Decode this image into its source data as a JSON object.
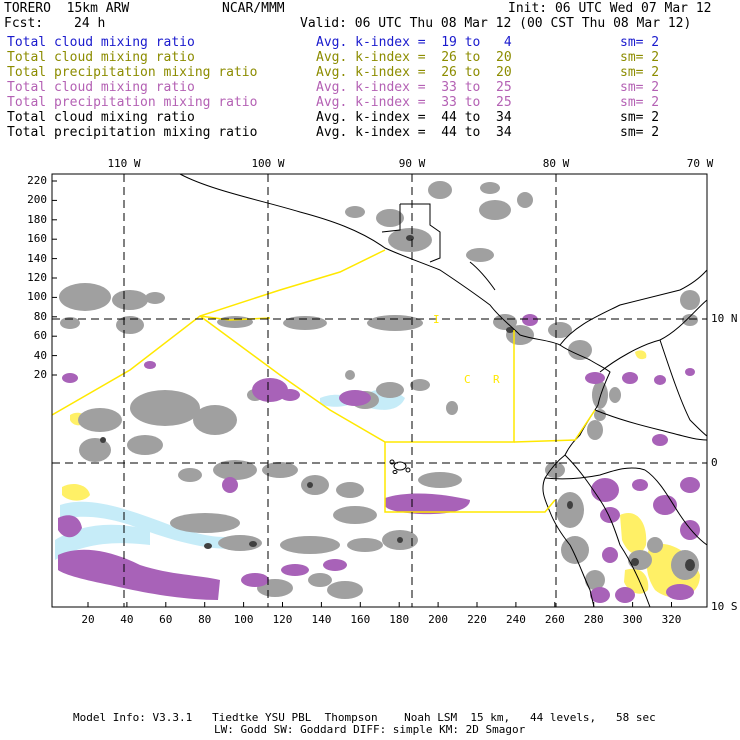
{
  "header": {
    "model": "TORERO  15km ARW",
    "center": "NCAR/MMM",
    "init": "Init: 06 UTC Wed 07 Mar 12",
    "fcst_label": "Fcst:",
    "fcst_value": "24 h",
    "valid": "Valid: 06 UTC Thu 08 Mar 12 (00 CST Thu 08 Mar 12)"
  },
  "legend": [
    {
      "field": "Total cloud mixing ratio",
      "kindex": "Avg. k-index =  19 to   4",
      "sm": "sm= 2",
      "color": "#1a1acd"
    },
    {
      "field": "Total cloud mixing ratio",
      "kindex": "Avg. k-index =  26 to  20",
      "sm": "sm= 2",
      "color": "#8c8c00"
    },
    {
      "field": "Total precipitation mixing ratio",
      "kindex": "Avg. k-index =  26 to  20",
      "sm": "sm= 2",
      "color": "#8c8c00"
    },
    {
      "field": "Total cloud mixing ratio",
      "kindex": "Avg. k-index =  33 to  25",
      "sm": "sm= 2",
      "color": "#b461b4"
    },
    {
      "field": "Total precipitation mixing ratio",
      "kindex": "Avg. k-index =  33 to  25",
      "sm": "sm= 2",
      "color": "#b461b4"
    },
    {
      "field": "Total cloud mixing ratio",
      "kindex": "Avg. k-index =  44 to  34",
      "sm": "sm= 2",
      "color": "#000000"
    },
    {
      "field": "Total precipitation mixing ratio",
      "kindex": "Avg. k-index =  44 to  34",
      "sm": "sm= 2",
      "color": "#000000"
    }
  ],
  "map": {
    "lon_labels": [
      "110 W",
      "100 W",
      "90 W",
      "80 W",
      "70 W"
    ],
    "lat_labels": [
      "10 N",
      "0",
      "10 S"
    ],
    "y_ticks": [
      "220",
      "200",
      "180",
      "160",
      "140",
      "120",
      "100",
      "80",
      "60",
      "40",
      "20"
    ],
    "x_ticks": [
      "20",
      "40",
      "60",
      "80",
      "100",
      "120",
      "140",
      "160",
      "180",
      "200",
      "220",
      "240",
      "260",
      "280",
      "300",
      "320"
    ],
    "region_labels": [
      "I",
      "C",
      "R"
    ],
    "colors": {
      "gray": "#a0a0a0",
      "purple": "#a862b8",
      "light_blue": "#c6ecf8",
      "yellow": "#fff066",
      "boundary": "#ffe800"
    }
  },
  "footer": {
    "line1": "Model Info: V3.3.1   Tiedtke YSU PBL  Thompson    Noah LSM  15 km,   44 levels,   58 sec",
    "line2": "LW: Godd SW: Goddard DIFF: simple KM: 2D Smagor"
  }
}
